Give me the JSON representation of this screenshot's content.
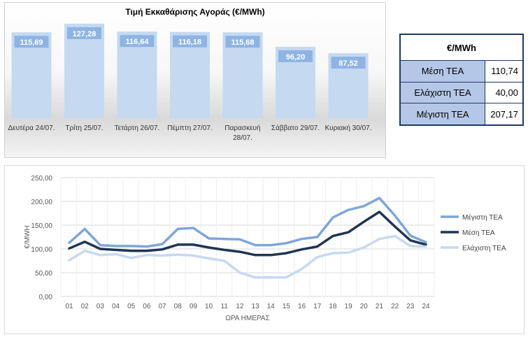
{
  "bar_chart": {
    "title": "Τιμή Εκκαθάρισης Αγοράς (€/MWh)",
    "bar_color": "#c5d9f1",
    "label_box_color": "#8eb4e3"
  },
  "summary_table": {
    "header": "€/MWh",
    "rows": [
      {
        "label": "Μέση ΤΕΑ",
        "value": "110,74"
      },
      {
        "label": "Ελάχιστη ΤΕΑ",
        "value": "40,00"
      },
      {
        "label": "Μέγιστη ΤΕΑ",
        "value": "207,17"
      }
    ],
    "label_bg": "#b4c7e7",
    "border_color": "#1f3864"
  },
  "line_chart": {
    "ylabel": "€/MWH",
    "xlabel": "ΩΡΑ ΗΜΕΡΑΣ",
    "y_tick_labels": [
      "0,00",
      "50,00",
      "100,00",
      "150,00",
      "200,00",
      "250,00"
    ],
    "x_tick_labels": [
      "01",
      "02",
      "03",
      "04",
      "05",
      "06",
      "07",
      "08",
      "09",
      "10",
      "11",
      "12",
      "13",
      "14",
      "15",
      "16",
      "17",
      "18",
      "19",
      "20",
      "21",
      "22",
      "23",
      "24"
    ],
    "legend": [
      "Μέγιστη ΤΕΑ",
      "Μέση ΤΕΑ",
      "Ελάχιστη ΤΕΑ"
    ]
  },
  "chart_data": [
    {
      "type": "bar",
      "title": "Τιμή Εκκαθάρισης Αγοράς (€/MWh)",
      "categories": [
        [
          "Δευτέρα 24/07."
        ],
        [
          "Τρίτη 25/07."
        ],
        [
          "Τετάρτη 26/07."
        ],
        [
          "Πέμπτη 27/07."
        ],
        [
          "Παρασκευή",
          "28/07."
        ],
        [
          "Σάββατο 29/07."
        ],
        [
          "Κυριακή 30/07."
        ]
      ],
      "values": [
        115.69,
        127.28,
        116.64,
        116.18,
        115.68,
        96.2,
        87.52
      ],
      "value_labels": [
        "115,69",
        "127,28",
        "116,64",
        "116,18",
        "115,68",
        "96,20",
        "87,52"
      ],
      "ylim": [
        0,
        130
      ],
      "grid": false,
      "legend": false
    },
    {
      "type": "line",
      "x": [
        "01",
        "02",
        "03",
        "04",
        "05",
        "06",
        "07",
        "08",
        "09",
        "10",
        "11",
        "12",
        "13",
        "14",
        "15",
        "16",
        "17",
        "18",
        "19",
        "20",
        "21",
        "22",
        "23",
        "24"
      ],
      "xlabel": "ΩΡΑ ΗΜΕΡΑΣ",
      "ylabel": "€/MWH",
      "ylim": [
        0,
        250
      ],
      "y_ticks": [
        0,
        50,
        100,
        150,
        200,
        250
      ],
      "grid": true,
      "legend_position": "right",
      "series": [
        {
          "name": "Μέγιστη ΤΕΑ",
          "color": "#7ea6d8",
          "width": 3.5,
          "values": [
            113,
            142,
            108,
            106,
            106,
            105,
            110,
            142,
            144,
            122,
            121,
            120,
            108,
            108,
            112,
            121,
            125,
            166,
            182,
            190,
            207,
            170,
            128,
            114
          ]
        },
        {
          "name": "Μέση ΤΕΑ",
          "color": "#1f3553",
          "width": 3.5,
          "values": [
            101,
            115,
            100,
            98,
            96,
            96,
            99,
            109,
            109,
            103,
            98,
            94,
            87,
            87,
            91,
            99,
            105,
            127,
            135,
            157,
            178,
            147,
            118,
            109
          ]
        },
        {
          "name": "Ελάχιστη ΤΕΑ",
          "color": "#c6d9f0",
          "width": 3.5,
          "values": [
            76,
            96,
            87,
            89,
            81,
            87,
            86,
            88,
            86,
            80,
            75,
            50,
            40,
            40,
            40,
            58,
            83,
            91,
            92,
            103,
            121,
            127,
            106,
            105
          ]
        }
      ]
    }
  ]
}
